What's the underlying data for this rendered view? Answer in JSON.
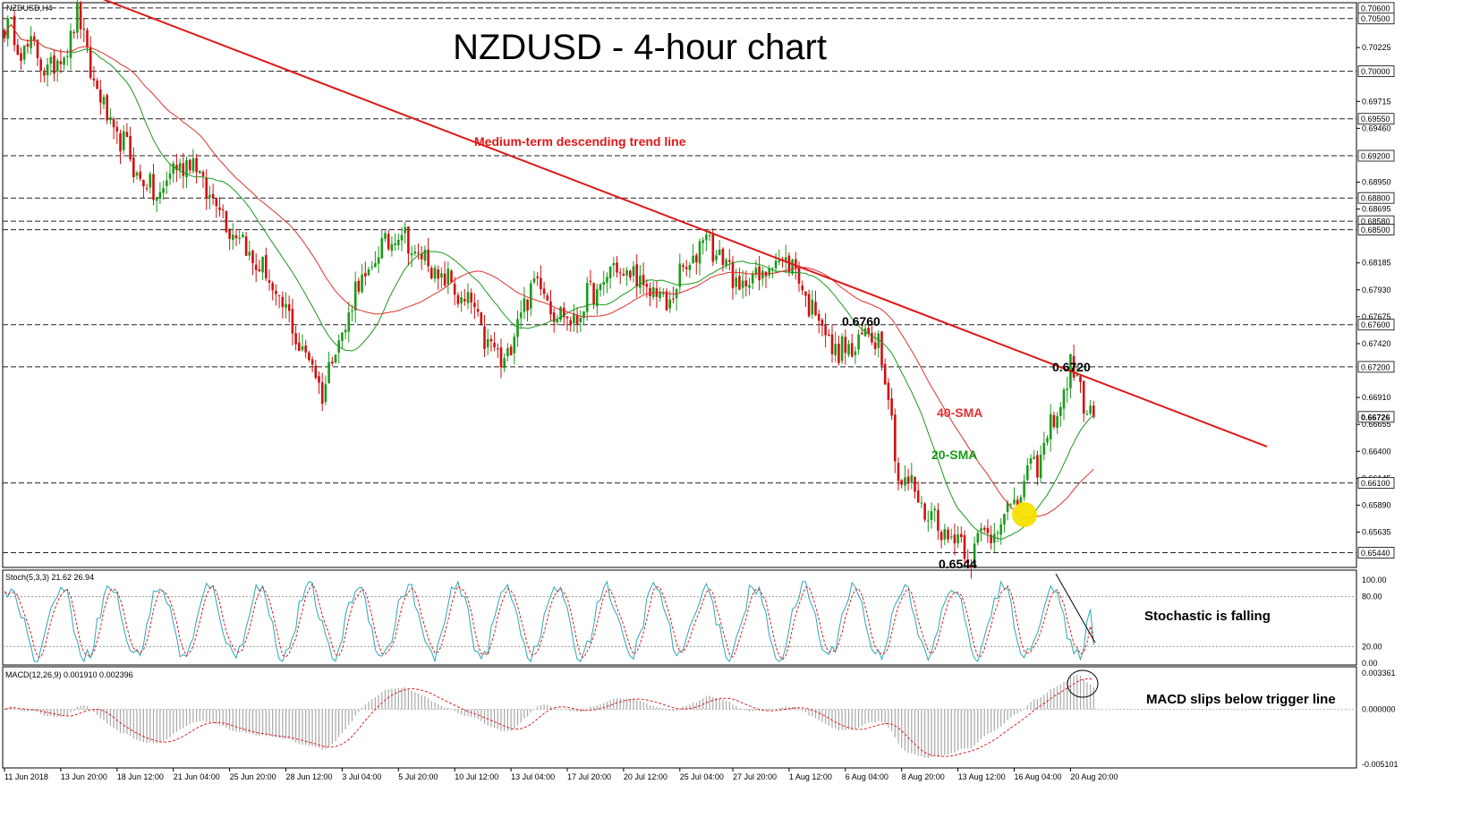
{
  "window_label": "NZDUSD,H4",
  "chart_data": {
    "type": "candlestick",
    "title": "NZDUSD - 4-hour chart",
    "symbol": "NZDUSD,H4",
    "price_axis": {
      "range": [
        0.653,
        0.7065
      ],
      "ticks": [
        "0.70225",
        "0.69715",
        "0.69460",
        "0.68950",
        "0.68695",
        "0.68185",
        "0.67930",
        "0.67675",
        "0.67420",
        "0.66910",
        "0.66655",
        "0.66400",
        "0.66145",
        "0.65890",
        "0.65635"
      ],
      "highlighted": [
        "0.70600",
        "0.70500",
        "0.70000",
        "0.69550",
        "0.69200",
        "0.68800",
        "0.68580",
        "0.68500",
        "0.67600",
        "0.67200",
        "0.66726",
        "0.66100",
        "0.65440"
      ]
    },
    "horizontal_levels": [
      0.706,
      0.705,
      0.7,
      0.6955,
      0.692,
      0.688,
      0.6858,
      0.685,
      0.676,
      0.672,
      0.661,
      0.6544
    ],
    "current_price": "0.66726",
    "x_labels": [
      "11 Jun 2018",
      "13 Jun 20:00",
      "18 Jun 12:00",
      "21 Jun 04:00",
      "25 Jun 20:00",
      "28 Jun 12:00",
      "3 Jul 04:00",
      "5 Jul 20:00",
      "10 Jul 12:00",
      "13 Jul 04:00",
      "17 Jul 20:00",
      "20 Jul 12:00",
      "25 Jul 04:00",
      "27 Jul 20:00",
      "1 Aug 12:00",
      "6 Aug 04:00",
      "8 Aug 20:00",
      "13 Aug 12:00",
      "16 Aug 04:00",
      "20 Aug 20:00"
    ],
    "price_path_anchors": [
      [
        0,
        0.704
      ],
      [
        15,
        0.7
      ],
      [
        22,
        0.705
      ],
      [
        30,
        0.696
      ],
      [
        45,
        0.688
      ],
      [
        55,
        0.692
      ],
      [
        65,
        0.687
      ],
      [
        80,
        0.68
      ],
      [
        96,
        0.67
      ],
      [
        106,
        0.679
      ],
      [
        118,
        0.685
      ],
      [
        130,
        0.681
      ],
      [
        140,
        0.678
      ],
      [
        150,
        0.672
      ],
      [
        160,
        0.6805
      ],
      [
        170,
        0.676
      ],
      [
        185,
        0.6815
      ],
      [
        200,
        0.678
      ],
      [
        212,
        0.6845
      ],
      [
        222,
        0.6795
      ],
      [
        236,
        0.6825
      ],
      [
        252,
        0.673
      ],
      [
        264,
        0.6755
      ],
      [
        270,
        0.662
      ],
      [
        282,
        0.657
      ],
      [
        292,
        0.6545
      ],
      [
        305,
        0.659
      ],
      [
        315,
        0.665
      ],
      [
        322,
        0.6718
      ],
      [
        329,
        0.6672
      ]
    ],
    "series": [
      {
        "name": "20-SMA",
        "color": "#1a9a1a"
      },
      {
        "name": "40-SMA",
        "color": "#e23030"
      }
    ],
    "annotations": {
      "trend_line": "Medium-term descending trend line",
      "sma40": "40-SMA",
      "sma20": "20-SMA",
      "high1": "0.6760",
      "high2": "0.6720",
      "low": "0.6544"
    },
    "stochastic": {
      "header": "Stoch(5,3,3) 21.62 26.94",
      "k": 21.62,
      "d": 26.94,
      "levels": [
        "100.00",
        "80.00",
        "20.00",
        "0.00"
      ],
      "note": "Stochastic is falling"
    },
    "macd": {
      "header": "MACD(12,26,9) 0.001910 0.002396",
      "main": 0.00191,
      "signal": 0.002396,
      "levels": [
        "0.003361",
        "0.000000",
        "-0.005101"
      ],
      "note": "MACD slips below trigger line"
    }
  },
  "colors": {
    "bull": "#1a9a1a",
    "bear": "#d01010",
    "trend": "#e01818",
    "stoch_main": "#2aa8b8",
    "stoch_signal": "#e02020",
    "histogram": "#a8a8a8",
    "crossover_marker": "#f5e000"
  }
}
